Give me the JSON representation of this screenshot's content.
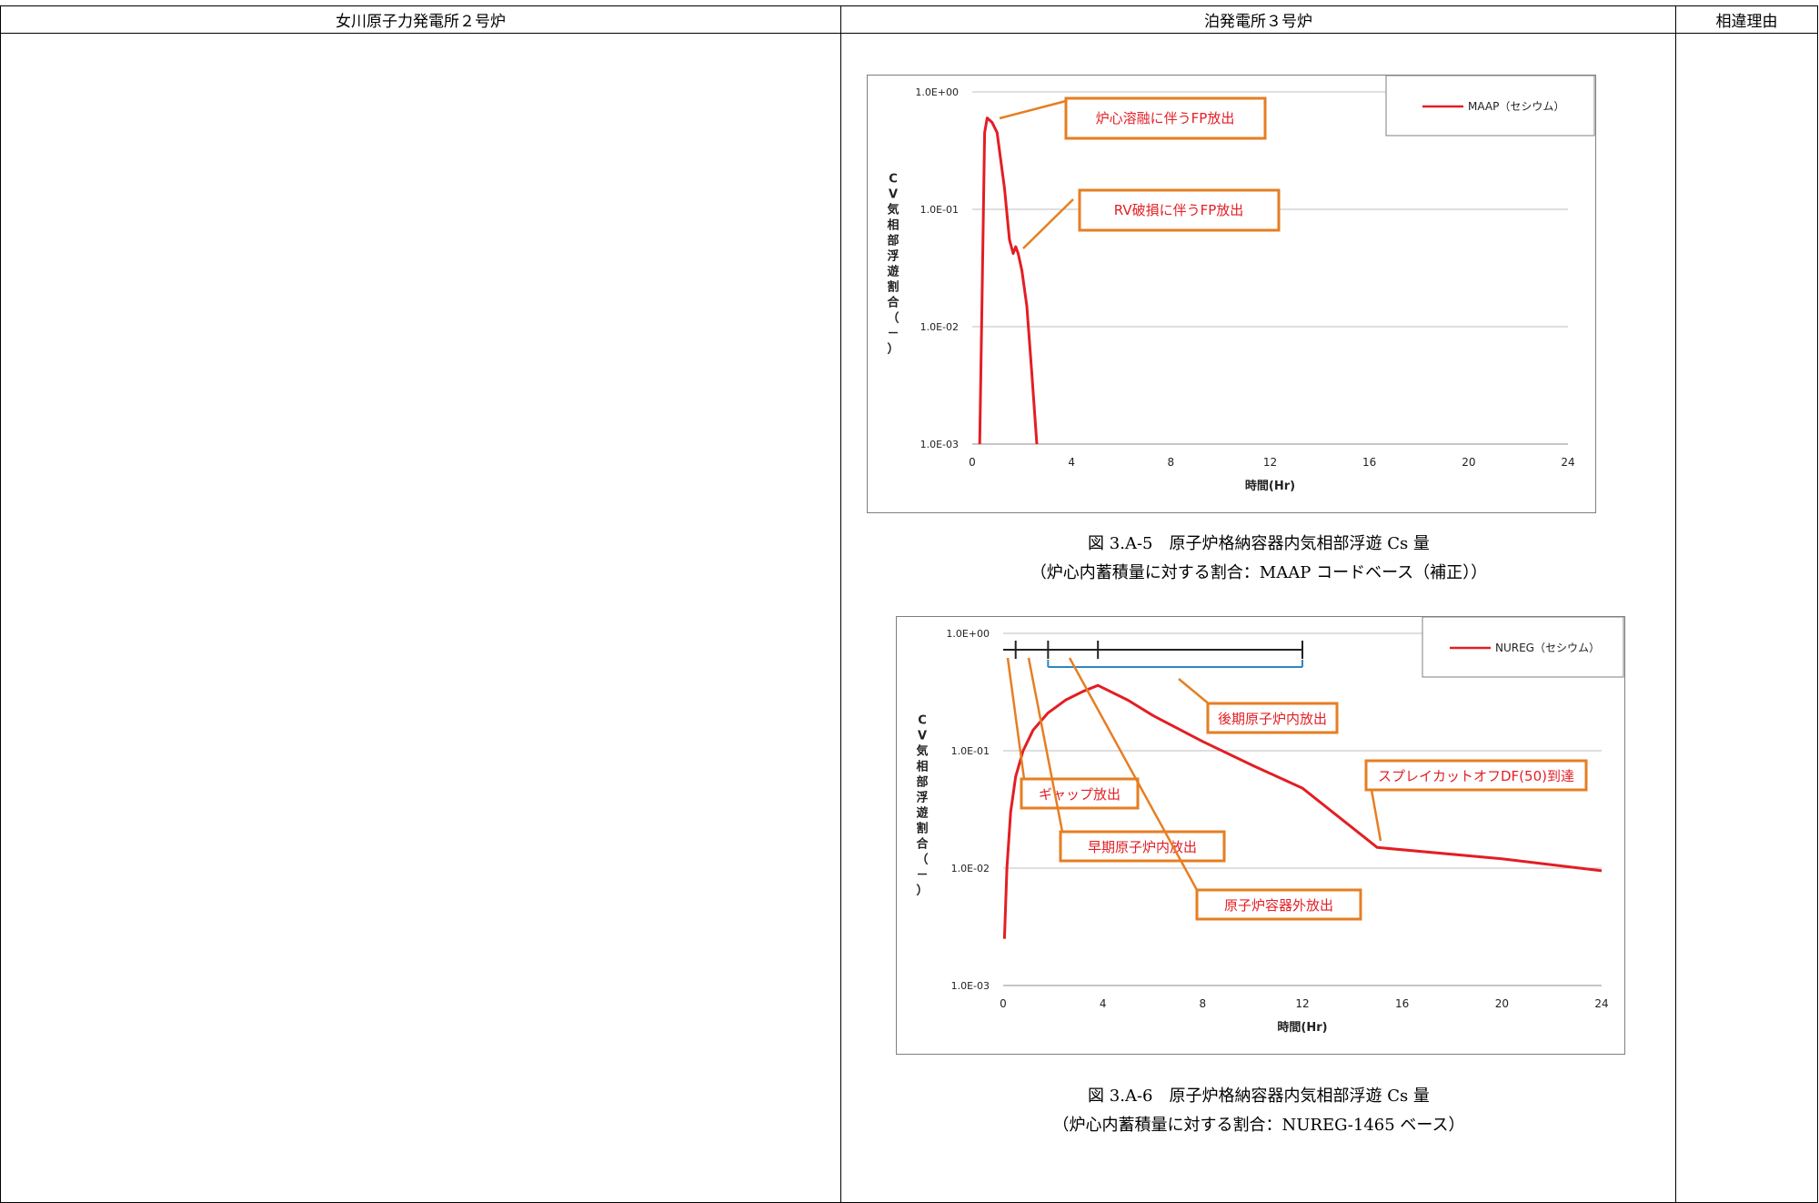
{
  "header": {
    "col1": "女川原子力発電所２号炉",
    "col2": "泊発電所３号炉",
    "col3": "相違理由"
  },
  "colors": {
    "curve": "#e31e24",
    "annotation_border": "#e67e22",
    "annotation_text": "#e31e24",
    "grid": "#bfbfbf",
    "bracket": "#2e86c1"
  },
  "figures": [
    {
      "caption_line1": "図 3.A-5　原子炉格納容器内気相部浮遊 Cs 量",
      "caption_line2": "（炉心内蓄積量に対する割合：MAAP コードベース（補正））",
      "legend": "MAAP（セシウム）",
      "annotations": [
        "炉心溶融に伴うFP放出",
        "RV破損に伴うFP放出"
      ]
    },
    {
      "caption_line1": "図 3.A-6　原子炉格納容器内気相部浮遊 Cs 量",
      "caption_line2": "（炉心内蓄積量に対する割合：NUREG-1465 ベース）",
      "legend": "NUREG（セシウム）",
      "annotations": [
        "後期原子炉内放出",
        "スプレイカットオフDF(50)到達",
        "ギャップ放出",
        "早期原子炉内放出",
        "原子炉容器外放出"
      ]
    }
  ],
  "chart_data": [
    {
      "type": "line",
      "xlabel": "時間(Hr)",
      "ylabel": "C V 気相部浮遊割合（－）",
      "x_ticks": [
        "0",
        "4",
        "8",
        "12",
        "16",
        "20",
        "24"
      ],
      "y_ticks": [
        "1.0E+00",
        "1.0E-01",
        "1.0E-02",
        "1.0E-03"
      ],
      "xlim": [
        0,
        24
      ],
      "ylim": [
        0.001,
        1.0
      ],
      "yscale": "log",
      "grid": true,
      "legend_position": "top-right",
      "series": [
        {
          "name": "MAAP（セシウム）",
          "x": [
            0.3,
            0.4,
            0.5,
            0.6,
            0.8,
            1.0,
            1.3,
            1.5,
            1.65,
            1.75,
            1.85,
            2.0,
            2.2,
            2.4,
            2.6
          ],
          "y": [
            0.001,
            0.02,
            0.45,
            0.6,
            0.55,
            0.45,
            0.15,
            0.055,
            0.042,
            0.048,
            0.042,
            0.03,
            0.015,
            0.004,
            0.001
          ]
        }
      ]
    },
    {
      "type": "line",
      "xlabel": "時間(Hr)",
      "ylabel": "C V 気相部浮遊割合（－）",
      "x_ticks": [
        "0",
        "4",
        "8",
        "12",
        "16",
        "20",
        "24"
      ],
      "y_ticks": [
        "1.0E+00",
        "1.0E-01",
        "1.0E-02",
        "1.0E-03"
      ],
      "xlim": [
        0,
        24
      ],
      "ylim": [
        0.001,
        1.0
      ],
      "yscale": "log",
      "grid": true,
      "legend_position": "top-right",
      "series": [
        {
          "name": "NUREG（セシウム）",
          "x": [
            0.05,
            0.15,
            0.3,
            0.5,
            0.8,
            1.2,
            1.8,
            2.5,
            3.2,
            3.8,
            5,
            6,
            8,
            10,
            12,
            15,
            20,
            24
          ],
          "y": [
            0.0025,
            0.01,
            0.03,
            0.06,
            0.1,
            0.15,
            0.21,
            0.27,
            0.32,
            0.36,
            0.27,
            0.2,
            0.12,
            0.075,
            0.048,
            0.015,
            0.012,
            0.0095
          ]
        }
      ]
    }
  ]
}
